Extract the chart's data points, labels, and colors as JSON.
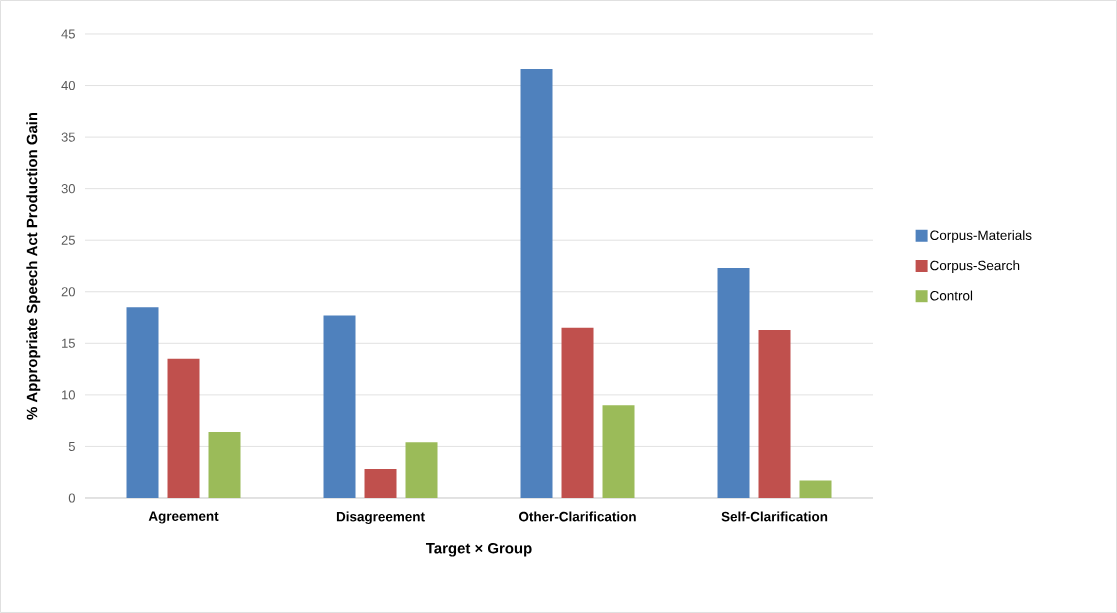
{
  "chart_data": {
    "type": "bar",
    "xlabel": "Target × Group",
    "ylabel": "% Appropriate Speech Act Production Gain",
    "categories": [
      "Agreement",
      "Disagreement",
      "Other-Clarification",
      "Self-Clarification"
    ],
    "series": [
      {
        "name": "Corpus-Materials",
        "color": "#4f81bd",
        "values": [
          18.5,
          17.7,
          41.6,
          22.3
        ]
      },
      {
        "name": "Corpus-Search",
        "color": "#c0504d",
        "values": [
          13.5,
          2.8,
          16.5,
          16.3
        ]
      },
      {
        "name": "Control",
        "color": "#9bbb59",
        "values": [
          6.4,
          5.4,
          9.0,
          1.7
        ]
      }
    ],
    "ylim": [
      0,
      45
    ],
    "yticks": [
      0,
      5,
      10,
      15,
      20,
      25,
      30,
      35,
      40,
      45
    ],
    "grid": "y",
    "legend": "right"
  }
}
